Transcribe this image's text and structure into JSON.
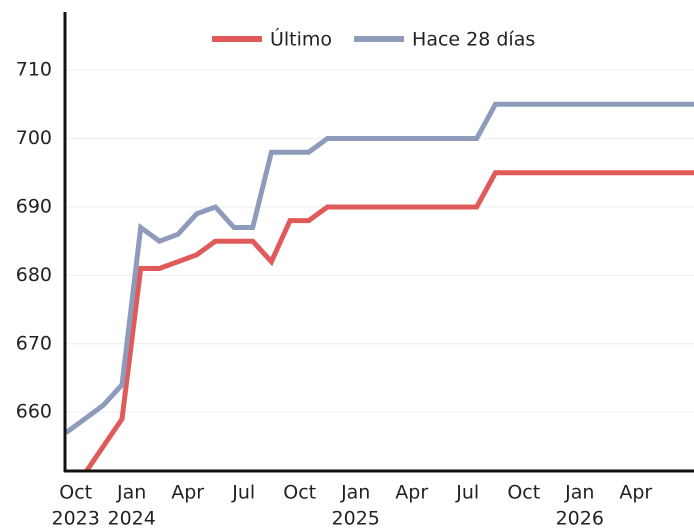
{
  "chart_data": {
    "type": "line",
    "x": [
      "2023-09",
      "2023-10",
      "2023-11",
      "2023-12",
      "2024-01",
      "2024-02",
      "2024-03",
      "2024-04",
      "2024-05",
      "2024-06",
      "2024-07",
      "2024-08",
      "2024-09",
      "2024-10",
      "2024-11",
      "2024-12",
      "2025-01",
      "2025-02",
      "2025-03",
      "2025-04",
      "2025-05",
      "2025-06",
      "2025-07",
      "2025-08",
      "2025-09",
      "2025-10",
      "2025-11",
      "2025-12",
      "2026-01",
      "2026-02",
      "2026-03",
      "2026-04",
      "2026-05",
      "2026-06",
      "2026-07"
    ],
    "series": [
      {
        "name": "Último",
        "color": "#e05a5a",
        "values": [
          null,
          651,
          655,
          659,
          681,
          681,
          682,
          683,
          685,
          685,
          685,
          682,
          688,
          688,
          690,
          690,
          690,
          690,
          690,
          690,
          690,
          690,
          690,
          695,
          695,
          695,
          695,
          695,
          695,
          695,
          695,
          695,
          695,
          695,
          695
        ]
      },
      {
        "name": "Hace 28 días",
        "color": "#8e9bbb",
        "values": [
          657,
          659,
          661,
          664,
          687,
          685,
          686,
          689,
          690,
          687,
          687,
          698,
          698,
          698,
          700,
          700,
          700,
          700,
          700,
          700,
          700,
          700,
          700,
          705,
          705,
          705,
          705,
          705,
          705,
          705,
          705,
          705,
          705,
          705,
          705
        ]
      }
    ],
    "ylim": [
      651.4,
      718.5
    ],
    "yticks": [
      660,
      670,
      680,
      690,
      700,
      710
    ],
    "grid": true,
    "xticks": [
      {
        "value": "2023-10",
        "label": "Oct",
        "year": "2023"
      },
      {
        "value": "2024-01",
        "label": "Jan",
        "year": "2024"
      },
      {
        "value": "2024-04",
        "label": "Apr"
      },
      {
        "value": "2024-07",
        "label": "Jul"
      },
      {
        "value": "2024-10",
        "label": "Oct"
      },
      {
        "value": "2025-01",
        "label": "Jan",
        "year": "2025"
      },
      {
        "value": "2025-04",
        "label": "Apr"
      },
      {
        "value": "2025-07",
        "label": "Jul"
      },
      {
        "value": "2025-10",
        "label": "Oct"
      },
      {
        "value": "2026-01",
        "label": "Jan",
        "year": "2026"
      },
      {
        "value": "2026-04",
        "label": "Apr"
      }
    ],
    "legend": "top"
  }
}
